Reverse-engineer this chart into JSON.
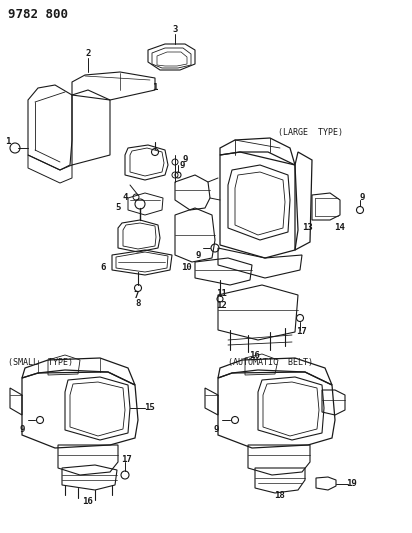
{
  "title": "9782 800",
  "bg": "#ffffff",
  "lc": "#1a1a1a",
  "tc": "#1a1a1a",
  "fig_w": 4.12,
  "fig_h": 5.33,
  "dpi": 100,
  "labels": {
    "large_type": "(LARGE  TYPE)",
    "small_type": "(SMALL  TYPE)",
    "auto_belt": "(AUTOMATIC  BELT)"
  }
}
